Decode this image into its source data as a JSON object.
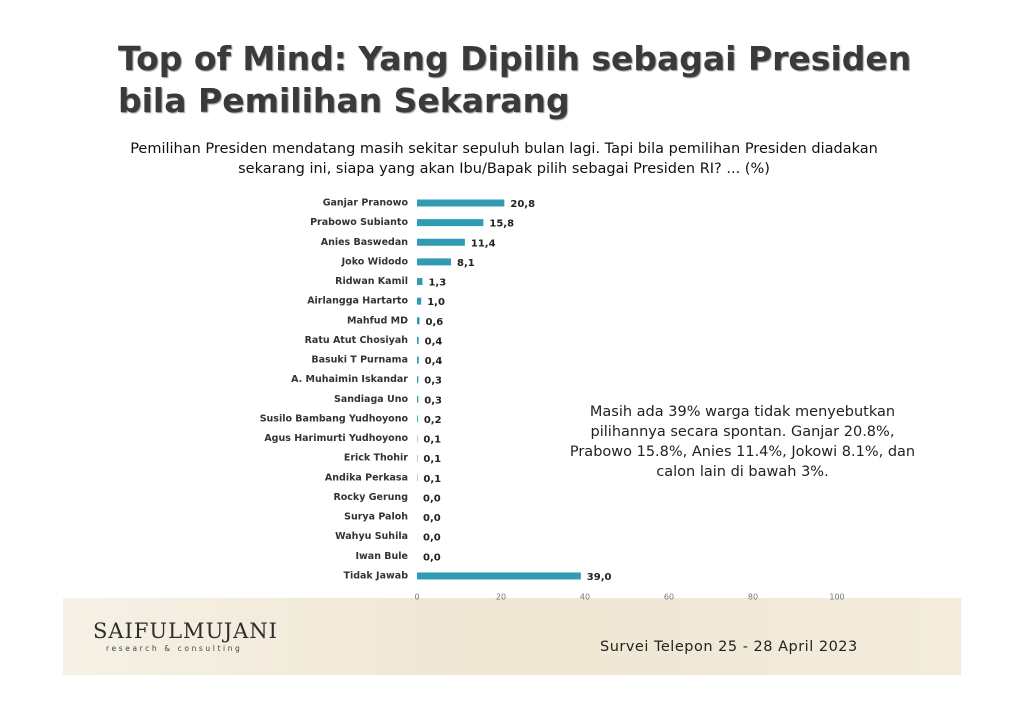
{
  "chart_data": {
    "type": "bar",
    "orientation": "horizontal",
    "title": "Top of Mind: Yang Dipilih sebagai Presiden bila Pemilihan Sekarang",
    "subtitle": "Pemilihan Presiden mendatang masih sekitar sepuluh bulan lagi. Tapi bila pemilihan Presiden diadakan sekarang ini, siapa yang akan Ibu/Bapak pilih sebagai Presiden RI? ... (%)",
    "annotation": "Masih ada 39% warga tidak menyebutkan pilihannya secara spontan. Ganjar 20.8%, Prabowo 15.8%, Anies 11.4%, Jokowi 8.1%, dan calon lain di bawah 3%.",
    "categories": [
      "Ganjar Pranowo",
      "Prabowo Subianto",
      "Anies Baswedan",
      "Joko Widodo",
      "Ridwan Kamil",
      "Airlangga Hartarto",
      "Mahfud MD",
      "Ratu Atut Chosiyah",
      "Basuki T Purnama",
      "A. Muhaimin Iskandar",
      "Sandiaga Uno",
      "Susilo Bambang Yudhoyono",
      "Agus Harimurti Yudhoyono",
      "Erick Thohir",
      "Andika Perkasa",
      "Rocky Gerung",
      "Surya Paloh",
      "Wahyu Suhila",
      "Iwan Bule",
      "Tidak Jawab"
    ],
    "values": [
      20.8,
      15.8,
      11.4,
      8.1,
      1.3,
      1.0,
      0.6,
      0.4,
      0.4,
      0.3,
      0.3,
      0.2,
      0.1,
      0.1,
      0.1,
      0.0,
      0.0,
      0.0,
      0.0,
      39.0
    ],
    "value_labels": [
      "20,8",
      "15,8",
      "11,4",
      "8,1",
      "1,3",
      "1,0",
      "0,6",
      "0,4",
      "0,4",
      "0,3",
      "0,3",
      "0,2",
      "0,1",
      "0,1",
      "0,1",
      "0,0",
      "0,0",
      "0,0",
      "0,0",
      "39,0"
    ],
    "color": "#2f9cb3",
    "xlim": [
      0,
      100
    ],
    "xticks": [
      0,
      20,
      40,
      60,
      80,
      100
    ],
    "grid": false
  },
  "footer": {
    "logo": "SAIFULMUJANI",
    "tagline": "research & consulting",
    "survey": "Survei Telepon 25 - 28 April 2023"
  }
}
